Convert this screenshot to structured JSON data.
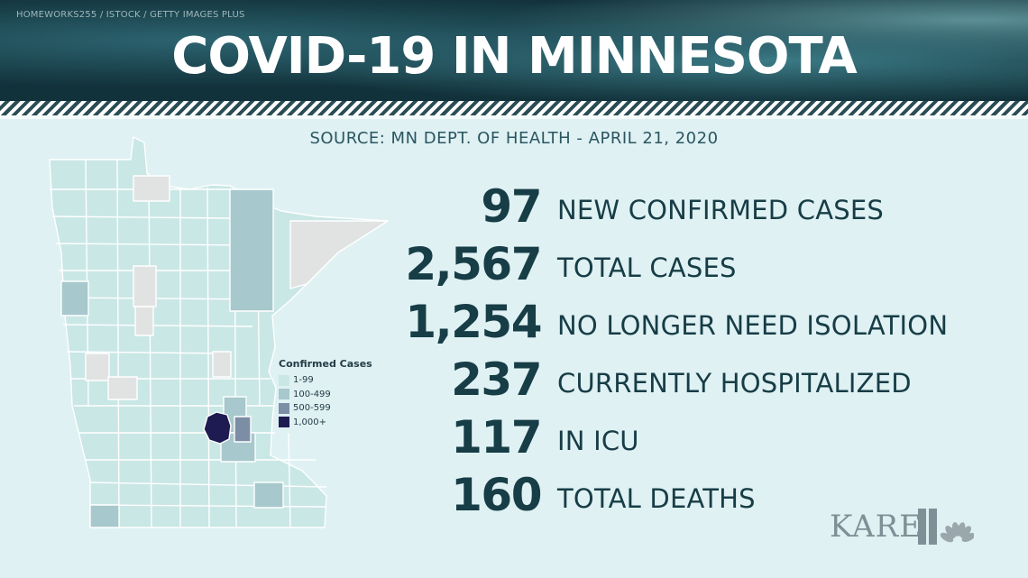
{
  "header": {
    "credit": "HOMEWORKS255 / ISTOCK / GETTY IMAGES PLUS",
    "title": "COVID-19 IN MINNESOTA"
  },
  "source": "SOURCE: MN DEPT. OF HEALTH - APRIL 21, 2020",
  "legend": {
    "title": "Confirmed Cases",
    "items": [
      {
        "label": "1-99",
        "color": "#c9e7e5"
      },
      {
        "label": "100-499",
        "color": "#a7c8cd"
      },
      {
        "label": "500-599",
        "color": "#7c8ea5"
      },
      {
        "label": "1,000+",
        "color": "#1e1b52"
      }
    ],
    "no_data_color": "#e1e3e3"
  },
  "stats": [
    {
      "value": "97",
      "label": "NEW CONFIRMED CASES"
    },
    {
      "value": "2,567",
      "label": "TOTAL CASES"
    },
    {
      "value": "1,254",
      "label": "NO LONGER NEED ISOLATION"
    },
    {
      "value": "237",
      "label": "CURRENTLY HOSPITALIZED"
    },
    {
      "value": "117",
      "label": "IN ICU"
    },
    {
      "value": "160",
      "label": "TOTAL DEATHS"
    }
  ],
  "logo": {
    "text": "KARE",
    "channel_mark": "11",
    "icon": "nbc-peacock-icon"
  }
}
